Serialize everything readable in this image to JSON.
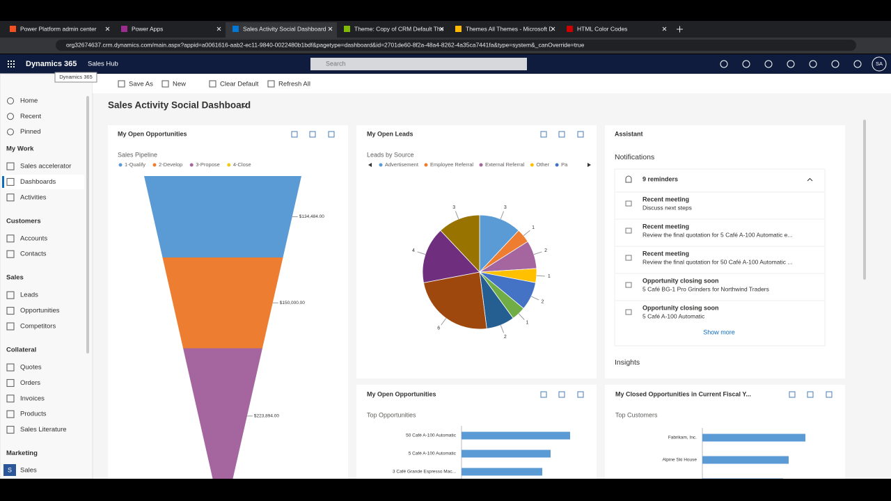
{
  "browser": {
    "tabs": [
      "Power Platform admin center",
      "Power Apps",
      "Sales Activity Social Dashboard",
      "Theme: Copy of CRM Default The",
      "Themes All Themes - Microsoft D",
      "HTML Color Codes"
    ],
    "url": "org32674637.crm.dynamics.com/main.aspx?appid=a0061616-aab2-ec11-9840-0022480b1bdf&pagetype=dashboard&id=2701de60-8f2a-48a4-8262-4a35ca7441fa&type=system&_canOverride=true"
  },
  "header": {
    "brand": "Dynamics 365",
    "tooltip": "Dynamics 365",
    "app": "Sales Hub",
    "search": "Search",
    "avatar": "SA"
  },
  "commands": [
    "Save As",
    "New",
    "Clear Default",
    "Refresh All"
  ],
  "sidebar": {
    "top": [
      "Home",
      "Recent",
      "Pinned"
    ],
    "groups": [
      {
        "title": "My Work",
        "items": [
          "Sales accelerator",
          "Dashboards",
          "Activities"
        ]
      },
      {
        "title": "Customers",
        "items": [
          "Accounts",
          "Contacts"
        ]
      },
      {
        "title": "Sales",
        "items": [
          "Leads",
          "Opportunities",
          "Competitors"
        ]
      },
      {
        "title": "Collateral",
        "items": [
          "Quotes",
          "Orders",
          "Invoices",
          "Products",
          "Sales Literature"
        ]
      },
      {
        "title": "Marketing",
        "items": []
      }
    ],
    "area_badge": "S",
    "area": "Sales"
  },
  "dashboard_title": "Sales Activity Social Dashboard",
  "funnel_panel": {
    "title": "My Open Opportunities",
    "chart": {
      "type": "funnel",
      "title": "Sales Pipeline",
      "series": [
        {
          "name": "1-Qualify",
          "color": "#5b9bd5",
          "value": 134484,
          "value_label": "$134,484.00"
        },
        {
          "name": "2-Develop",
          "color": "#ed7d31",
          "value": 150000,
          "value_label": "$150,000.00"
        },
        {
          "name": "3-Propose",
          "color": "#a5669f",
          "value": 223894,
          "value_label": "$223,894.00"
        },
        {
          "name": "4-Close",
          "color": "#f2c811"
        }
      ]
    }
  },
  "leads_panel": {
    "title": "My Open Leads",
    "chart": {
      "type": "pie",
      "title": "Leads by Source",
      "legend": [
        {
          "name": "Advertisement",
          "color": "#5b9bd5"
        },
        {
          "name": "Employee Referral",
          "color": "#ed7d31"
        },
        {
          "name": "External Referral",
          "color": "#a5669f"
        },
        {
          "name": "Other",
          "color": "#ffc000"
        },
        {
          "name": "Pa",
          "color": "#4472c4"
        }
      ],
      "values": [
        3,
        1,
        2,
        1,
        2,
        1,
        2,
        6,
        4,
        3
      ],
      "colors": [
        "#5b9bd5",
        "#ed7d31",
        "#a5669f",
        "#ffc000",
        "#4472c4",
        "#70ad47",
        "#255e91",
        "#9e480e",
        "#6f2e7e",
        "#997300"
      ]
    }
  },
  "assistant": {
    "title": "Assistant",
    "notifications": "Notifications",
    "reminders": "9 reminders",
    "items": [
      {
        "title": "Recent meeting",
        "text": "Discuss next steps"
      },
      {
        "title": "Recent meeting",
        "text": "Review the final quotation for 5 Café A-100 Automatic e..."
      },
      {
        "title": "Recent meeting",
        "text": "Review the final quotation for 50 Café A-100 Automatic ..."
      },
      {
        "title": "Opportunity closing soon",
        "text": "5 Café BG-1 Pro Grinders for Northwind Traders"
      },
      {
        "title": "Opportunity closing soon",
        "text": "5 Café A-100 Automatic"
      }
    ],
    "show_more": "Show more",
    "insights": "Insights"
  },
  "opps_panel": {
    "title": "My Open Opportunities",
    "chart": {
      "type": "hbar",
      "title": "Top Opportunities",
      "color": "#5b9bd5",
      "categories": [
        "50 Café A-100 Automatic",
        "5 Café A-100 Automatic",
        "3 Café Grande Espresso Mac..."
      ],
      "values": [
        78,
        64,
        58
      ],
      "xlim": [
        0,
        100
      ]
    }
  },
  "customers_panel": {
    "title": "My Closed Opportunities in Current Fiscal Y...",
    "chart": {
      "type": "hbar",
      "title": "Top Customers",
      "color": "#5b9bd5",
      "categories": [
        "Fabrikam, Inc.",
        "Alpine Ski House",
        null
      ],
      "values": [
        74,
        62,
        58
      ],
      "xlim": [
        0,
        100
      ]
    }
  }
}
